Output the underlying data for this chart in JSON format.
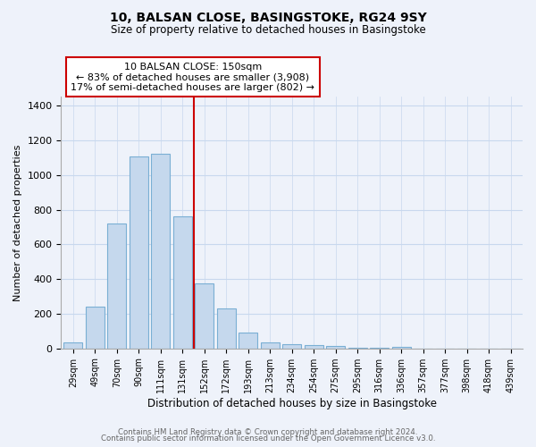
{
  "title": "10, BALSAN CLOSE, BASINGSTOKE, RG24 9SY",
  "subtitle": "Size of property relative to detached houses in Basingstoke",
  "xlabel": "Distribution of detached houses by size in Basingstoke",
  "ylabel": "Number of detached properties",
  "bar_labels": [
    "29sqm",
    "49sqm",
    "70sqm",
    "90sqm",
    "111sqm",
    "131sqm",
    "152sqm",
    "172sqm",
    "193sqm",
    "213sqm",
    "234sqm",
    "254sqm",
    "275sqm",
    "295sqm",
    "316sqm",
    "336sqm",
    "357sqm",
    "377sqm",
    "398sqm",
    "418sqm",
    "439sqm"
  ],
  "bar_values": [
    35,
    240,
    720,
    1105,
    1120,
    760,
    375,
    230,
    90,
    35,
    25,
    20,
    15,
    3,
    2,
    10,
    1,
    1,
    1,
    0,
    0
  ],
  "bar_color": "#c5d8ed",
  "bar_edge_color": "#7aafd4",
  "vline_x": 5.5,
  "vline_color": "#cc0000",
  "annotation_text": "10 BALSAN CLOSE: 150sqm\n← 83% of detached houses are smaller (3,908)\n17% of semi-detached houses are larger (802) →",
  "annotation_box_color": "#ffffff",
  "annotation_box_edge": "#cc0000",
  "ylim": [
    0,
    1450
  ],
  "yticks": [
    0,
    200,
    400,
    600,
    800,
    1000,
    1200,
    1400
  ],
  "footer_line1": "Contains HM Land Registry data © Crown copyright and database right 2024.",
  "footer_line2": "Contains public sector information licensed under the Open Government Licence v3.0.",
  "bg_color": "#eef2fa"
}
